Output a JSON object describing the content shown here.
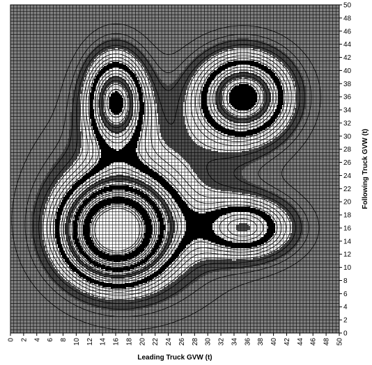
{
  "chart_data": {
    "type": "heatmap",
    "subtype": "filled-contour",
    "title": "",
    "xlabel": "Leading Truck GVW (t)",
    "ylabel": "Following Truck GVW (t)",
    "xlim": [
      0,
      50
    ],
    "ylim": [
      0,
      50
    ],
    "x_ticks": [
      0,
      2,
      4,
      6,
      8,
      10,
      12,
      14,
      16,
      18,
      20,
      22,
      24,
      26,
      28,
      30,
      32,
      34,
      36,
      38,
      40,
      42,
      44,
      46,
      48,
      50
    ],
    "y_ticks": [
      0,
      2,
      4,
      6,
      8,
      10,
      12,
      14,
      16,
      18,
      20,
      22,
      24,
      26,
      28,
      30,
      32,
      34,
      36,
      38,
      40,
      42,
      44,
      46,
      48,
      50
    ],
    "y_axis_side": "right",
    "grid": true,
    "legend": "none",
    "palette": [
      "#808080",
      "#ffffff",
      "#000000",
      "#505050"
    ],
    "peaks": [
      {
        "x": 16,
        "y": 15.5,
        "relative_height": 1.0
      },
      {
        "x": 35.5,
        "y": 36,
        "relative_height": 0.62
      },
      {
        "x": 16,
        "y": 35.5,
        "relative_height": 0.55
      },
      {
        "x": 36,
        "y": 16,
        "relative_height": 0.4
      }
    ]
  }
}
